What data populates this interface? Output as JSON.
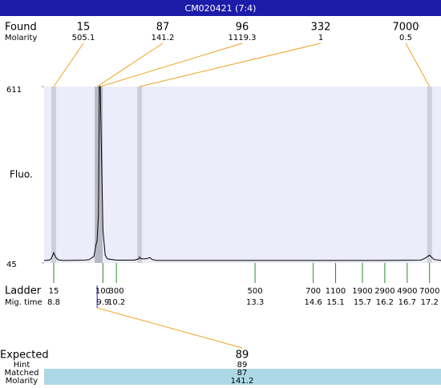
{
  "title": "CM020421 (7:4)",
  "found": {
    "label": "Found",
    "sub_label": "Molarity",
    "sizes": [
      15,
      87,
      96,
      332,
      7000
    ],
    "molarity": [
      505.1,
      141.2,
      1119.3,
      1,
      0.5
    ],
    "times": [
      8.8,
      9.77,
      9.84,
      10.72,
      17.2
    ]
  },
  "plot": {
    "y_label": "Fluo.",
    "ylim": [
      45,
      611
    ],
    "yticks": [
      611,
      45
    ],
    "xlim": [
      8.585,
      17.456
    ],
    "trace": {
      "x": [
        8.585,
        8.7,
        8.75,
        8.8,
        8.85,
        8.9,
        9.0,
        9.5,
        9.6,
        9.7,
        9.74,
        9.77,
        9.8,
        9.82,
        9.84,
        9.87,
        9.9,
        9.95,
        10.0,
        10.2,
        10.6,
        10.7,
        10.72,
        10.75,
        10.85,
        10.95,
        11.0,
        11.1,
        12,
        14,
        16,
        17.0,
        17.1,
        17.2,
        17.3,
        17.456
      ],
      "y": [
        53,
        54,
        60,
        78,
        62,
        55,
        53,
        54,
        56,
        66,
        100,
        117,
        200,
        611,
        611,
        380,
        150,
        70,
        58,
        54,
        54,
        58,
        64,
        58,
        58,
        62,
        56,
        53,
        53,
        53,
        53,
        54,
        60,
        70,
        56,
        53
      ]
    }
  },
  "ladder": {
    "label": "Ladder",
    "sub_label": "Mig. time",
    "sizes": [
      15,
      100,
      300,
      500,
      700,
      1100,
      1900,
      2900,
      4900,
      7000
    ],
    "times": [
      8.8,
      9.9,
      10.2,
      13.3,
      14.6,
      15.1,
      15.7,
      16.2,
      16.7,
      17.2
    ]
  },
  "expected": {
    "label": "Expected",
    "value": 89,
    "hint_label": "Hint",
    "hint": 89,
    "matched_label": "Matched",
    "matched": 87,
    "molarity_label": "Molarity",
    "molarity": 141.2
  }
}
